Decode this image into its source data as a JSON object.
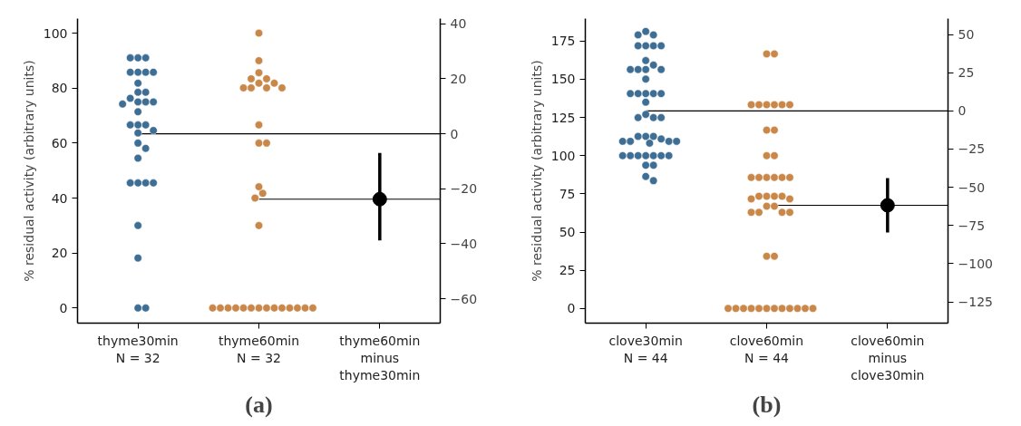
{
  "chart_data": [
    {
      "type": "scatter",
      "ylabel": "% residual activity (arbitrary units)",
      "categories": [
        "thyme30min\nN = 32",
        "thyme60min\nN = 32",
        "thyme60min\nminus\nthyme30min"
      ],
      "ylim": [
        -5.5,
        105.3
      ],
      "yticks": [
        0,
        20,
        40,
        60,
        80,
        100
      ],
      "y2lim": [
        -68.9,
        41.9
      ],
      "y2ticks": [
        -60,
        -40,
        -20,
        0,
        20,
        40
      ],
      "marker": "circle",
      "grid": false,
      "annotations": [
        "(a)"
      ],
      "ref_lines": [
        {
          "axis": "y2",
          "value": 0,
          "color": "#000000"
        },
        {
          "axis": "y2",
          "value": -23.8,
          "color": "#000000"
        }
      ],
      "series": [
        {
          "color": "#3f6e94",
          "x": [
            "thyme30min\nN = 32",
            "thyme30min\nN = 32",
            "thyme30min\nN = 32",
            "thyme30min\nN = 32",
            "thyme30min\nN = 32",
            "thyme30min\nN = 32",
            "thyme30min\nN = 32",
            "thyme30min\nN = 32",
            "thyme30min\nN = 32",
            "thyme30min\nN = 32",
            "thyme30min\nN = 32",
            "thyme30min\nN = 32",
            "thyme30min\nN = 32",
            "thyme30min\nN = 32",
            "thyme30min\nN = 32",
            "thyme30min\nN = 32",
            "thyme30min\nN = 32",
            "thyme30min\nN = 32",
            "thyme30min\nN = 32",
            "thyme30min\nN = 32",
            "thyme30min\nN = 32",
            "thyme30min\nN = 32",
            "thyme30min\nN = 32",
            "thyme30min\nN = 32",
            "thyme30min\nN = 32",
            "thyme30min\nN = 32",
            "thyme30min\nN = 32",
            "thyme30min\nN = 32",
            "thyme30min\nN = 32",
            "thyme30min\nN = 32",
            "thyme30min\nN = 32",
            "thyme30min\nN = 32"
          ],
          "values": [
            91,
            91,
            91,
            85.8,
            85.8,
            85.8,
            85.8,
            81.8,
            78.5,
            78.5,
            76.3,
            75,
            75,
            75,
            74.2,
            71.4,
            66.6,
            66.6,
            66.6,
            64.6,
            63.7,
            60,
            58.1,
            54.5,
            45.5,
            45.5,
            45.5,
            45.5,
            30,
            18.2,
            0,
            0
          ]
        },
        {
          "color": "#c9874a",
          "x": [
            "thyme60min\nN = 32",
            "thyme60min\nN = 32",
            "thyme60min\nN = 32",
            "thyme60min\nN = 32",
            "thyme60min\nN = 32",
            "thyme60min\nN = 32",
            "thyme60min\nN = 32",
            "thyme60min\nN = 32",
            "thyme60min\nN = 32",
            "thyme60min\nN = 32",
            "thyme60min\nN = 32",
            "thyme60min\nN = 32",
            "thyme60min\nN = 32",
            "thyme60min\nN = 32",
            "thyme60min\nN = 32",
            "thyme60min\nN = 32",
            "thyme60min\nN = 32",
            "thyme60min\nN = 32",
            "thyme60min\nN = 32",
            "thyme60min\nN = 32",
            "thyme60min\nN = 32",
            "thyme60min\nN = 32",
            "thyme60min\nN = 32",
            "thyme60min\nN = 32",
            "thyme60min\nN = 32",
            "thyme60min\nN = 32",
            "thyme60min\nN = 32",
            "thyme60min\nN = 32",
            "thyme60min\nN = 32",
            "thyme60min\nN = 32",
            "thyme60min\nN = 32",
            "thyme60min\nN = 32"
          ],
          "values": [
            100,
            90,
            85.6,
            83.4,
            83.4,
            81.8,
            81.8,
            80.1,
            80.1,
            80.1,
            80.1,
            66.6,
            60,
            60,
            44.1,
            41.7,
            40,
            30,
            0,
            0,
            0,
            0,
            0,
            0,
            0,
            0,
            0,
            0,
            0,
            0,
            0,
            0
          ]
        },
        {
          "color": "#000000",
          "axis": "y2",
          "x": [
            "thyme60min\nminus\nthyme30min"
          ],
          "values": [
            -23.8
          ],
          "errors": [
            [
              -38.8,
              -7.0
            ]
          ]
        }
      ]
    },
    {
      "type": "scatter",
      "ylabel": "% residual activity (arbitrary units)",
      "categories": [
        "clove30min\nN = 44",
        "clove60min\nN = 44",
        "clove60min\nminus\nclove30min"
      ],
      "ylim": [
        -9.6,
        189.7
      ],
      "yticks": [
        0,
        25,
        50,
        75,
        100,
        125,
        150,
        175
      ],
      "y2lim": [
        -138.9,
        60.4
      ],
      "y2ticks": [
        -125,
        -100,
        -75,
        -50,
        -25,
        0,
        25,
        50
      ],
      "marker": "circle",
      "grid": false,
      "annotations": [
        "(b)"
      ],
      "ref_lines": [
        {
          "axis": "y2",
          "value": 0,
          "color": "#000000"
        },
        {
          "axis": "y2",
          "value": -61.8,
          "color": "#000000"
        }
      ],
      "series": [
        {
          "color": "#3f6e94",
          "x": [
            "clove30min\nN = 44",
            "clove30min\nN = 44",
            "clove30min\nN = 44",
            "clove30min\nN = 44",
            "clove30min\nN = 44",
            "clove30min\nN = 44",
            "clove30min\nN = 44",
            "clove30min\nN = 44",
            "clove30min\nN = 44",
            "clove30min\nN = 44",
            "clove30min\nN = 44",
            "clove30min\nN = 44",
            "clove30min\nN = 44",
            "clove30min\nN = 44",
            "clove30min\nN = 44",
            "clove30min\nN = 44",
            "clove30min\nN = 44",
            "clove30min\nN = 44",
            "clove30min\nN = 44",
            "clove30min\nN = 44",
            "clove30min\nN = 44",
            "clove30min\nN = 44",
            "clove30min\nN = 44",
            "clove30min\nN = 44",
            "clove30min\nN = 44",
            "clove30min\nN = 44",
            "clove30min\nN = 44",
            "clove30min\nN = 44",
            "clove30min\nN = 44",
            "clove30min\nN = 44",
            "clove30min\nN = 44",
            "clove30min\nN = 44",
            "clove30min\nN = 44",
            "clove30min\nN = 44",
            "clove30min\nN = 44",
            "clove30min\nN = 44",
            "clove30min\nN = 44",
            "clove30min\nN = 44",
            "clove30min\nN = 44",
            "clove30min\nN = 44",
            "clove30min\nN = 44",
            "clove30min\nN = 44",
            "clove30min\nN = 44",
            "clove30min\nN = 44"
          ],
          "values": [
            181.3,
            179,
            179,
            171.9,
            171.9,
            171.9,
            171.9,
            162.2,
            159.3,
            156.4,
            156.4,
            156.4,
            156.4,
            150.1,
            140.6,
            140.6,
            140.6,
            140.6,
            140.6,
            135,
            127,
            124.9,
            124.9,
            124.9,
            112.6,
            112.6,
            112.6,
            110.9,
            109.4,
            109.4,
            109.4,
            109.4,
            108.2,
            100,
            100,
            100,
            100,
            100,
            100,
            100,
            93.7,
            93.7,
            86.4,
            83.6
          ]
        },
        {
          "color": "#c9874a",
          "x": [
            "clove60min\nN = 44",
            "clove60min\nN = 44",
            "clove60min\nN = 44",
            "clove60min\nN = 44",
            "clove60min\nN = 44",
            "clove60min\nN = 44",
            "clove60min\nN = 44",
            "clove60min\nN = 44",
            "clove60min\nN = 44",
            "clove60min\nN = 44",
            "clove60min\nN = 44",
            "clove60min\nN = 44",
            "clove60min\nN = 44",
            "clove60min\nN = 44",
            "clove60min\nN = 44",
            "clove60min\nN = 44",
            "clove60min\nN = 44",
            "clove60min\nN = 44",
            "clove60min\nN = 44",
            "clove60min\nN = 44",
            "clove60min\nN = 44",
            "clove60min\nN = 44",
            "clove60min\nN = 44",
            "clove60min\nN = 44",
            "clove60min\nN = 44",
            "clove60min\nN = 44",
            "clove60min\nN = 44",
            "clove60min\nN = 44",
            "clove60min\nN = 44",
            "clove60min\nN = 44",
            "clove60min\nN = 44",
            "clove60min\nN = 44",
            "clove60min\nN = 44",
            "clove60min\nN = 44",
            "clove60min\nN = 44",
            "clove60min\nN = 44",
            "clove60min\nN = 44",
            "clove60min\nN = 44",
            "clove60min\nN = 44",
            "clove60min\nN = 44",
            "clove60min\nN = 44",
            "clove60min\nN = 44",
            "clove60min\nN = 44",
            "clove60min\nN = 44"
          ],
          "values": [
            166.6,
            166.6,
            133.3,
            133.3,
            133.3,
            133.3,
            133.3,
            133.3,
            116.7,
            116.7,
            100,
            100,
            85.7,
            85.7,
            85.7,
            85.7,
            85.7,
            85.7,
            73.4,
            73.4,
            73.4,
            73.4,
            71.7,
            71.7,
            66.9,
            66.9,
            62.9,
            62.9,
            62.9,
            62.9,
            34.2,
            34.2,
            0,
            0,
            0,
            0,
            0,
            0,
            0,
            0,
            0,
            0,
            0,
            0
          ]
        },
        {
          "color": "#000000",
          "axis": "y2",
          "x": [
            "clove60min\nminus\nclove30min"
          ],
          "values": [
            -61.8
          ],
          "errors": [
            [
              -79.6,
              -44.0
            ]
          ]
        }
      ]
    }
  ]
}
